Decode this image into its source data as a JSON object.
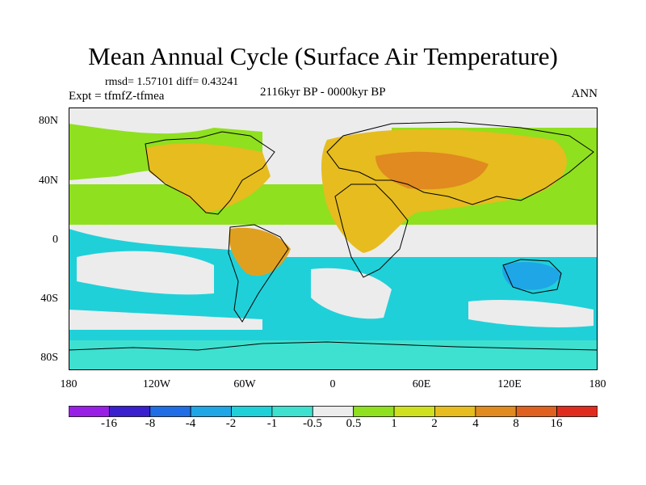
{
  "title": "Mean Annual Cycle (Surface Air Temperature)",
  "stats": "rmsd= 1.57101 diff= 0.43241",
  "expt": "Expt = tfmfZ-tfmea",
  "period": "2116kyr BP - 0000kyr BP",
  "season": "ANN",
  "y_ticks": [
    "80N",
    "40N",
    "0",
    "40S",
    "80S"
  ],
  "x_ticks": [
    "180",
    "120W",
    "60W",
    "0",
    "60E",
    "120E",
    "180"
  ],
  "colorbar": {
    "labels": [
      "-16",
      "-8",
      "-4",
      "-2",
      "-1",
      "-0.5",
      "0.5",
      "1",
      "2",
      "4",
      "8",
      "16"
    ],
    "colors": [
      "#9a1fe6",
      "#3a1fcf",
      "#1f6ee6",
      "#1fa6e6",
      "#1fd0d9",
      "#3ee0d0",
      "#ececec",
      "#8fe01f",
      "#cfe01f",
      "#e6bc1f",
      "#e08a1f",
      "#e0601f",
      "#e02c1f"
    ]
  }
}
